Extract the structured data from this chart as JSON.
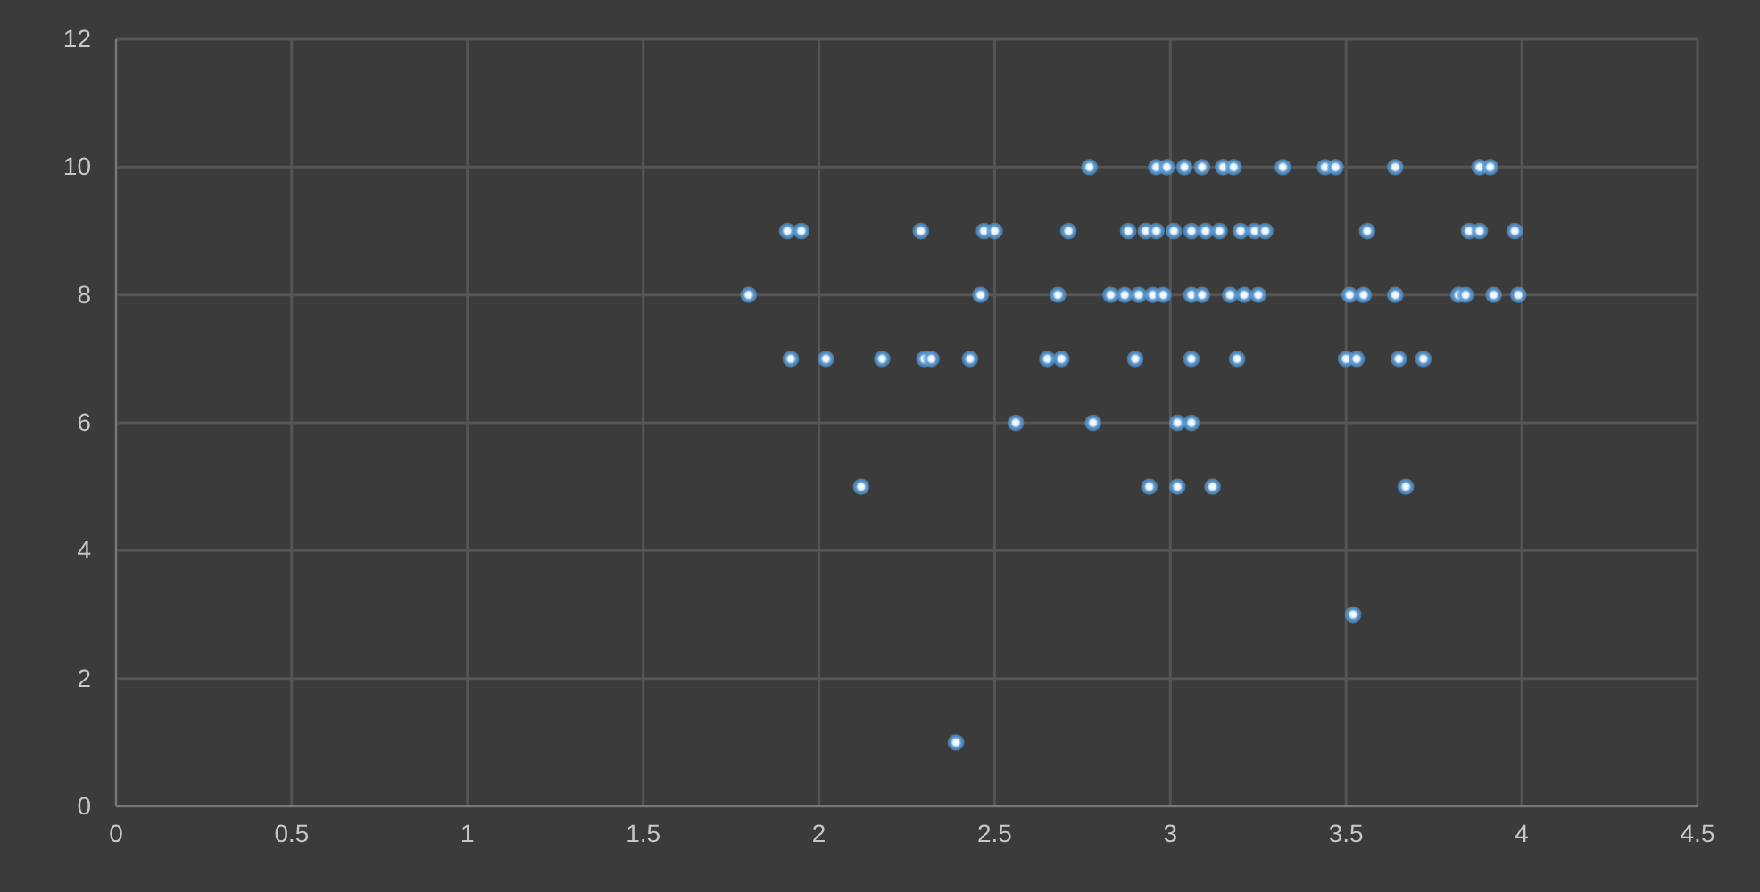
{
  "chart_data": {
    "type": "scatter",
    "xlim": [
      0,
      4.5
    ],
    "xticks": [
      0,
      0.5,
      1,
      1.5,
      2,
      2.5,
      3,
      3.5,
      4,
      4.5
    ],
    "ylim": [
      0,
      12
    ],
    "yticks": [
      0,
      2,
      4,
      6,
      8,
      10,
      12
    ],
    "grid": true,
    "marker": "circle",
    "series": [
      {
        "color": "#5b9bd5",
        "x": [
          2.77,
          2.96,
          2.99,
          3.04,
          3.09,
          3.15,
          3.18,
          3.32,
          3.44,
          3.47,
          3.64,
          3.88,
          3.91,
          1.91,
          1.95,
          2.29,
          2.47,
          2.5,
          2.71,
          2.88,
          2.93,
          2.96,
          3.01,
          3.06,
          3.1,
          3.14,
          3.2,
          3.24,
          3.27,
          3.56,
          3.85,
          3.88,
          3.98,
          1.8,
          2.46,
          2.68,
          2.83,
          2.87,
          2.91,
          2.95,
          2.98,
          3.06,
          3.09,
          3.17,
          3.21,
          3.25,
          3.51,
          3.55,
          3.64,
          3.82,
          3.84,
          3.92,
          3.99,
          1.92,
          2.02,
          2.18,
          2.3,
          2.32,
          2.43,
          2.65,
          2.69,
          2.9,
          3.06,
          3.19,
          3.5,
          3.53,
          3.65,
          3.72,
          2.56,
          2.78,
          3.02,
          3.06,
          2.12,
          2.94,
          3.02,
          3.12,
          3.67,
          3.52,
          2.39
        ],
        "values": [
          10,
          10,
          10,
          10,
          10,
          10,
          10,
          10,
          10,
          10,
          10,
          10,
          10,
          9,
          9,
          9,
          9,
          9,
          9,
          9,
          9,
          9,
          9,
          9,
          9,
          9,
          9,
          9,
          9,
          9,
          9,
          9,
          9,
          8,
          8,
          8,
          8,
          8,
          8,
          8,
          8,
          8,
          8,
          8,
          8,
          8,
          8,
          8,
          8,
          8,
          8,
          8,
          8,
          7,
          7,
          7,
          7,
          7,
          7,
          7,
          7,
          7,
          7,
          7,
          7,
          7,
          7,
          7,
          6,
          6,
          6,
          6,
          5,
          5,
          5,
          5,
          5,
          3,
          1
        ]
      }
    ]
  }
}
